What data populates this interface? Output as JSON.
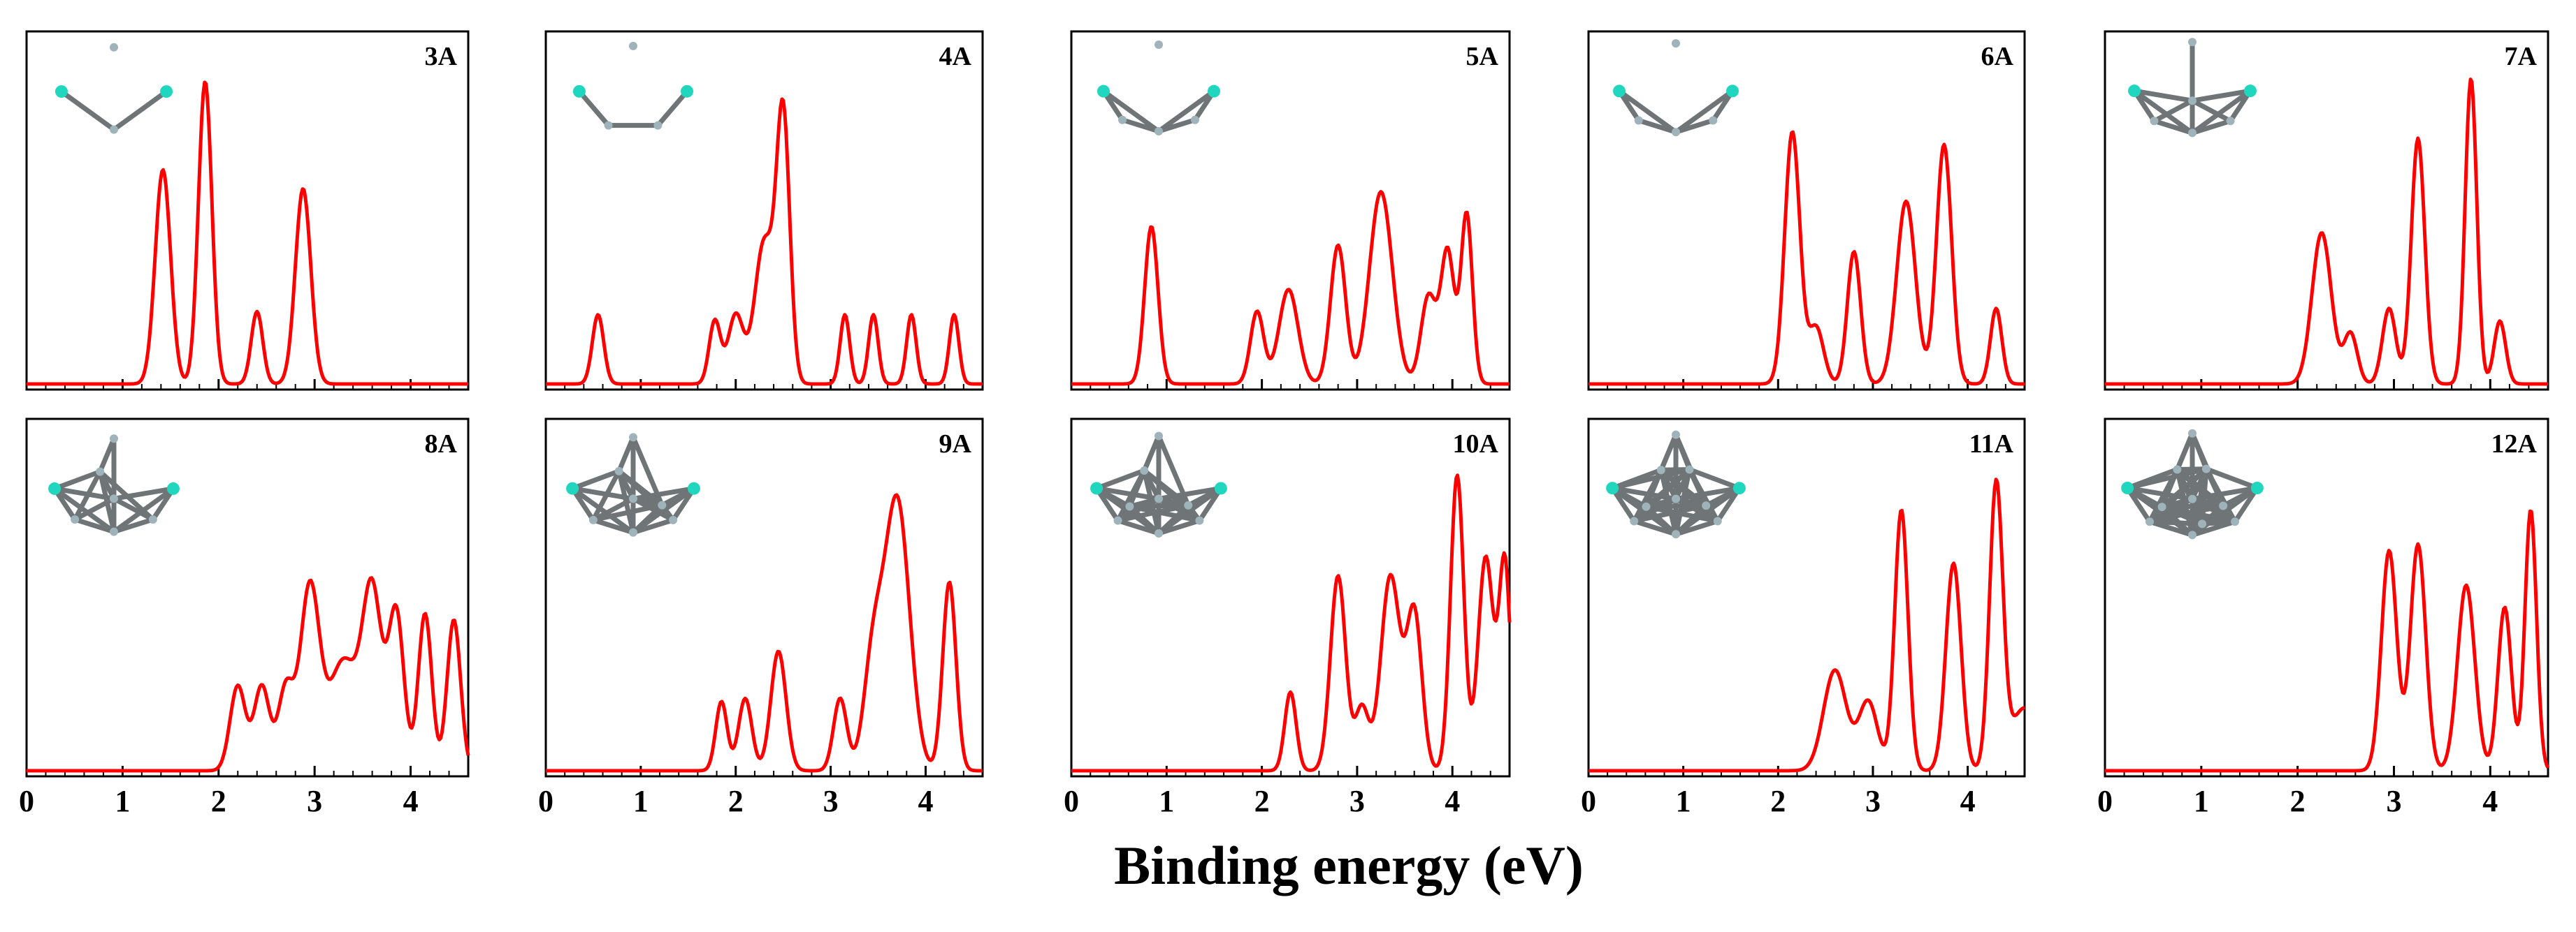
{
  "figure": {
    "xlabel": "Binding energy (eV)",
    "line_color": "#ff0000",
    "atom_color": "#9fb3ba",
    "accent_atom_color": "#21d6bf",
    "bond_color": "#6f7477"
  },
  "chart_data": [
    {
      "type": "line",
      "label": "3A",
      "xlim": [
        0,
        4.6
      ],
      "ylim": [
        0,
        1
      ],
      "ticks": [
        0,
        1,
        2,
        3,
        4
      ],
      "peaks": [
        [
          1.42,
          0.68,
          0.08
        ],
        [
          1.86,
          0.96,
          0.07
        ],
        [
          2.4,
          0.23,
          0.06
        ],
        [
          2.88,
          0.62,
          0.08
        ]
      ]
    },
    {
      "type": "line",
      "label": "4A",
      "xlim": [
        0,
        4.6
      ],
      "ylim": [
        0,
        1
      ],
      "ticks": [
        0,
        1,
        2,
        3,
        4
      ],
      "peaks": [
        [
          0.55,
          0.22,
          0.06
        ],
        [
          1.78,
          0.2,
          0.06
        ],
        [
          2.0,
          0.22,
          0.08
        ],
        [
          2.3,
          0.45,
          0.1
        ],
        [
          2.5,
          0.84,
          0.07
        ],
        [
          3.15,
          0.22,
          0.05
        ],
        [
          3.45,
          0.22,
          0.05
        ],
        [
          3.85,
          0.22,
          0.05
        ],
        [
          4.3,
          0.22,
          0.05
        ]
      ]
    },
    {
      "type": "line",
      "label": "5A",
      "xlim": [
        0,
        4.6
      ],
      "ylim": [
        0,
        1
      ],
      "ticks": [
        0,
        1,
        2,
        3,
        4
      ],
      "peaks": [
        [
          0.84,
          0.5,
          0.07
        ],
        [
          1.95,
          0.23,
          0.07
        ],
        [
          2.28,
          0.3,
          0.1
        ],
        [
          2.8,
          0.44,
          0.08
        ],
        [
          3.25,
          0.61,
          0.12
        ],
        [
          3.75,
          0.28,
          0.08
        ],
        [
          3.95,
          0.42,
          0.07
        ],
        [
          4.15,
          0.54,
          0.06
        ]
      ]
    },
    {
      "type": "line",
      "label": "6A",
      "xlim": [
        0,
        4.6
      ],
      "ylim": [
        0,
        1
      ],
      "ticks": [
        0,
        1,
        2,
        3,
        4
      ],
      "peaks": [
        [
          2.15,
          0.8,
          0.08
        ],
        [
          2.4,
          0.18,
          0.08
        ],
        [
          2.8,
          0.42,
          0.07
        ],
        [
          3.35,
          0.58,
          0.1
        ],
        [
          3.75,
          0.76,
          0.08
        ],
        [
          4.3,
          0.24,
          0.06
        ]
      ]
    },
    {
      "type": "line",
      "label": "7A",
      "xlim": [
        0,
        4.6
      ],
      "ylim": [
        0,
        1
      ],
      "ticks": [
        0,
        1,
        2,
        3,
        4
      ],
      "peaks": [
        [
          2.25,
          0.48,
          0.1
        ],
        [
          2.55,
          0.16,
          0.07
        ],
        [
          2.95,
          0.24,
          0.07
        ],
        [
          3.25,
          0.78,
          0.07
        ],
        [
          3.8,
          0.97,
          0.06
        ],
        [
          4.1,
          0.2,
          0.06
        ]
      ]
    },
    {
      "type": "line",
      "label": "8A",
      "xlim": [
        0,
        4.6
      ],
      "ylim": [
        0,
        1
      ],
      "ticks": [
        0,
        1,
        2,
        3,
        4
      ],
      "peaks": [
        [
          2.2,
          0.27,
          0.08
        ],
        [
          2.45,
          0.27,
          0.08
        ],
        [
          2.7,
          0.26,
          0.08
        ],
        [
          2.95,
          0.58,
          0.1
        ],
        [
          3.3,
          0.35,
          0.15
        ],
        [
          3.6,
          0.56,
          0.1
        ],
        [
          3.85,
          0.5,
          0.08
        ],
        [
          4.15,
          0.5,
          0.07
        ],
        [
          4.45,
          0.48,
          0.07
        ]
      ]
    },
    {
      "type": "line",
      "label": "9A",
      "xlim": [
        0,
        4.6
      ],
      "ylim": [
        0,
        1
      ],
      "ticks": [
        0,
        1,
        2,
        3,
        4
      ],
      "peaks": [
        [
          1.85,
          0.22,
          0.06
        ],
        [
          2.1,
          0.23,
          0.07
        ],
        [
          2.45,
          0.38,
          0.08
        ],
        [
          3.1,
          0.23,
          0.07
        ],
        [
          3.45,
          0.35,
          0.1
        ],
        [
          3.7,
          0.86,
          0.13
        ],
        [
          4.25,
          0.6,
          0.07
        ]
      ]
    },
    {
      "type": "line",
      "label": "10A",
      "xlim": [
        0,
        4.6
      ],
      "ylim": [
        0,
        1
      ],
      "ticks": [
        0,
        1,
        2,
        3,
        4
      ],
      "peaks": [
        [
          2.3,
          0.25,
          0.06
        ],
        [
          2.8,
          0.62,
          0.08
        ],
        [
          3.05,
          0.2,
          0.07
        ],
        [
          3.35,
          0.62,
          0.1
        ],
        [
          3.6,
          0.5,
          0.08
        ],
        [
          4.05,
          0.94,
          0.07
        ],
        [
          4.35,
          0.68,
          0.08
        ],
        [
          4.55,
          0.66,
          0.06
        ]
      ]
    },
    {
      "type": "line",
      "label": "11A",
      "xlim": [
        0,
        4.6
      ],
      "ylim": [
        0,
        1
      ],
      "ticks": [
        0,
        1,
        2,
        3,
        4
      ],
      "peaks": [
        [
          2.6,
          0.32,
          0.12
        ],
        [
          2.95,
          0.22,
          0.1
        ],
        [
          3.3,
          0.83,
          0.07
        ],
        [
          3.85,
          0.66,
          0.08
        ],
        [
          4.3,
          0.9,
          0.07
        ],
        [
          4.6,
          0.2,
          0.15
        ]
      ]
    },
    {
      "type": "line",
      "label": "12A",
      "xlim": [
        0,
        4.6
      ],
      "ylim": [
        0,
        1
      ],
      "ticks": [
        0,
        1,
        2,
        3,
        4
      ],
      "peaks": [
        [
          2.95,
          0.7,
          0.08
        ],
        [
          3.25,
          0.72,
          0.08
        ],
        [
          3.75,
          0.59,
          0.09
        ],
        [
          4.15,
          0.52,
          0.07
        ],
        [
          4.42,
          0.83,
          0.06
        ]
      ]
    }
  ]
}
